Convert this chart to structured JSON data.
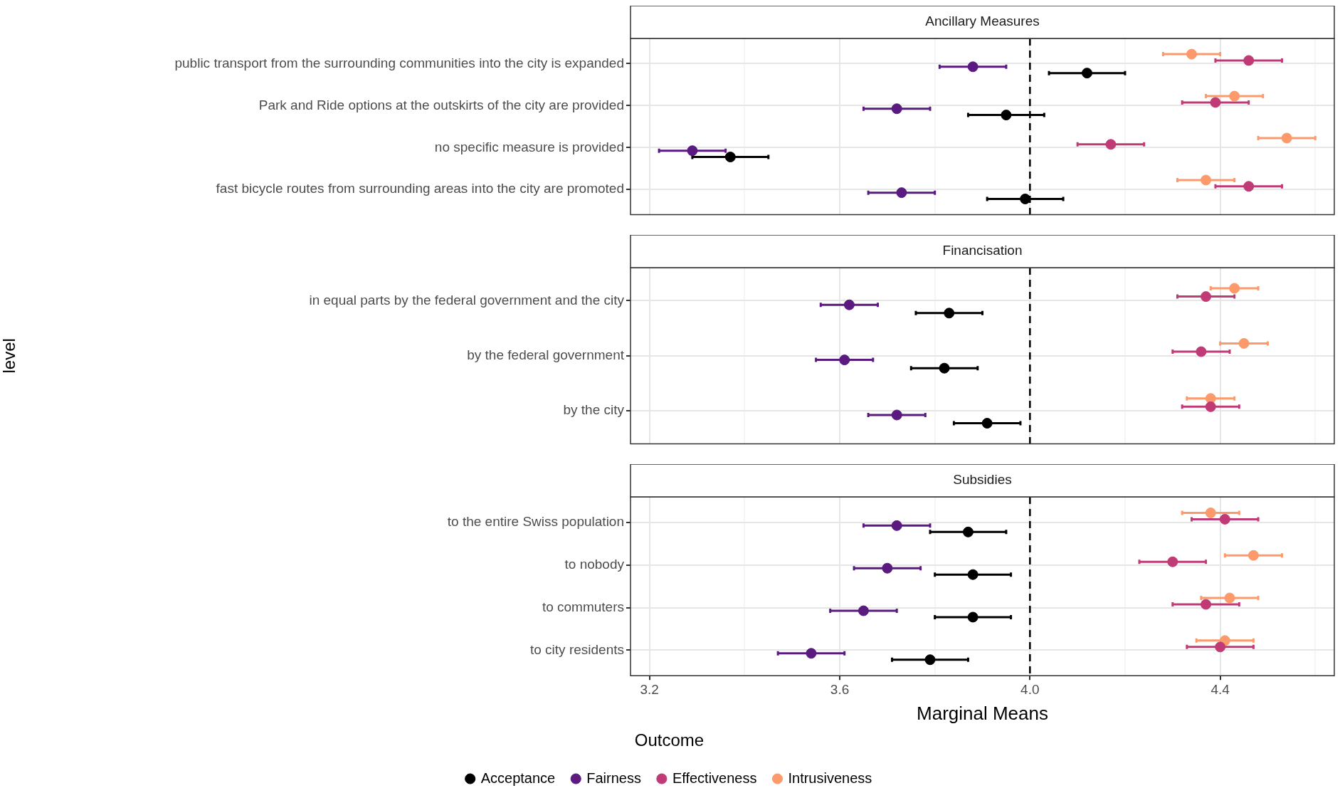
{
  "chart_data": [
    {
      "type": "scatter",
      "orientation": "horizontal",
      "title": "Ancillary Measures",
      "categories": [
        "public transport from the surrounding communities into the city is expanded",
        "Park and Ride options at the outskirts of the city are provided",
        "no specific measure is provided",
        "fast bicycle routes from surrounding areas into the city are promoted"
      ],
      "xlim": [
        3.16,
        4.64
      ],
      "xticks": [
        3.2,
        {
          "value": 3.4,
          "label": null
        },
        3.6,
        {
          "value": 3.8,
          "label": null
        },
        4.0,
        {
          "value": 4.2,
          "label": null
        },
        4.4,
        {
          "value": 4.6,
          "label": null
        }
      ],
      "tick_labels": "y",
      "grid": true,
      "marker": "circle",
      "ref_lines": [
        {
          "axis": "x",
          "value": 4.0,
          "color": "#000000",
          "line_style": "dashed"
        }
      ],
      "series": [
        {
          "color": "#000000",
          "values": [
            4.12,
            3.95,
            3.37,
            3.99
          ],
          "errors": [
            0.08,
            0.08,
            0.08,
            0.08
          ]
        },
        {
          "color": "#5a1a80",
          "values": [
            3.88,
            3.72,
            3.29,
            3.73
          ],
          "errors": [
            0.07,
            0.07,
            0.07,
            0.07
          ]
        },
        {
          "color": "#c03a76",
          "values": [
            4.46,
            4.39,
            4.17,
            4.46
          ],
          "errors": [
            0.07,
            0.07,
            0.07,
            0.07
          ]
        },
        {
          "color": "#fc9a6b",
          "values": [
            4.34,
            4.43,
            4.54,
            4.37
          ],
          "errors": [
            0.06,
            0.06,
            0.06,
            0.06
          ]
        }
      ]
    },
    {
      "type": "scatter",
      "orientation": "horizontal",
      "title": "Financisation",
      "ylabel": "level",
      "categories": [
        "in equal parts by the federal government and the city",
        "by the federal government",
        "by the city"
      ],
      "xlim": [
        3.16,
        4.64
      ],
      "xticks": [
        3.2,
        {
          "value": 3.4,
          "label": null
        },
        3.6,
        {
          "value": 3.8,
          "label": null
        },
        4.0,
        {
          "value": 4.2,
          "label": null
        },
        4.4,
        {
          "value": 4.6,
          "label": null
        }
      ],
      "tick_labels": "y",
      "grid": true,
      "marker": "circle",
      "ref_lines": [
        {
          "axis": "x",
          "value": 4.0,
          "color": "#000000",
          "line_style": "dashed"
        }
      ],
      "series": [
        {
          "color": "#000000",
          "values": [
            3.83,
            3.82,
            3.91
          ],
          "errors": [
            0.07,
            0.07,
            0.07
          ]
        },
        {
          "color": "#5a1a80",
          "values": [
            3.62,
            3.61,
            3.72
          ],
          "errors": [
            0.06,
            0.06,
            0.06
          ]
        },
        {
          "color": "#c03a76",
          "values": [
            4.37,
            4.36,
            4.38
          ],
          "errors": [
            0.06,
            0.06,
            0.06
          ]
        },
        {
          "color": "#fc9a6b",
          "values": [
            4.43,
            4.45,
            4.38
          ],
          "errors": [
            0.05,
            0.05,
            0.05
          ]
        }
      ]
    },
    {
      "type": "scatter",
      "orientation": "horizontal",
      "title": "Subsidies",
      "xlabel": "Marginal Means",
      "legend_title": "Outcome",
      "legend": "bottom",
      "categories": [
        "to the entire Swiss population",
        "to nobody",
        "to commuters",
        "to city residents"
      ],
      "xlim": [
        3.16,
        4.64
      ],
      "xticks": [
        3.2,
        {
          "value": 3.4,
          "label": null
        },
        3.6,
        {
          "value": 3.8,
          "label": null
        },
        {
          "value": 4,
          "label": "4.0"
        },
        {
          "value": 4.2,
          "label": null
        },
        4.4,
        {
          "value": 4.6,
          "label": null
        }
      ],
      "grid": true,
      "marker": "circle",
      "ref_lines": [
        {
          "axis": "x",
          "value": 4.0,
          "color": "#000000",
          "line_style": "dashed"
        }
      ],
      "series": [
        {
          "name": "Acceptance",
          "color": "#000000",
          "values": [
            3.87,
            3.88,
            3.88,
            3.79
          ],
          "errors": [
            0.08,
            0.08,
            0.08,
            0.08
          ]
        },
        {
          "name": "Fairness",
          "color": "#5a1a80",
          "values": [
            3.72,
            3.7,
            3.65,
            3.54
          ],
          "errors": [
            0.07,
            0.07,
            0.07,
            0.07
          ]
        },
        {
          "name": "Effectiveness",
          "color": "#c03a76",
          "values": [
            4.41,
            4.3,
            4.37,
            4.4
          ],
          "errors": [
            0.07,
            0.07,
            0.07,
            0.07
          ]
        },
        {
          "name": "Intrusiveness",
          "color": "#fc9a6b",
          "values": [
            4.38,
            4.47,
            4.42,
            4.41
          ],
          "errors": [
            0.06,
            0.06,
            0.06,
            0.06
          ]
        }
      ]
    }
  ]
}
